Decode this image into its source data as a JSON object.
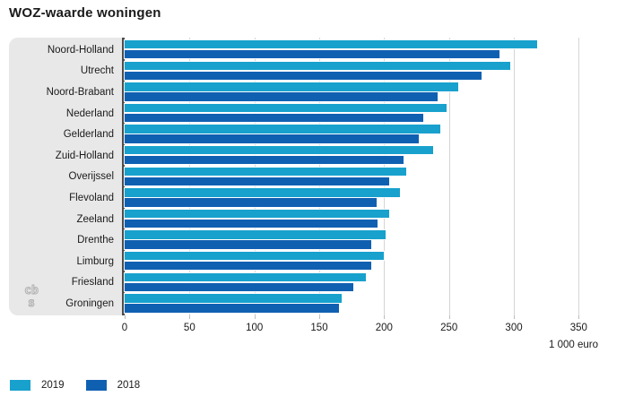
{
  "title": "WOZ-waarde woningen",
  "chart_data": {
    "type": "bar",
    "orientation": "horizontal",
    "title": "WOZ-waarde woningen",
    "categories": [
      "Noord-Holland",
      "Utrecht",
      "Noord-Brabant",
      "Nederland",
      "Gelderland",
      "Zuid-Holland",
      "Overijssel",
      "Flevoland",
      "Zeeland",
      "Drenthe",
      "Limburg",
      "Friesland",
      "Groningen"
    ],
    "series": [
      {
        "name": "2019",
        "color": "#18a1cd",
        "values": [
          318,
          297,
          257,
          248,
          243,
          238,
          217,
          212,
          204,
          201,
          200,
          186,
          167
        ]
      },
      {
        "name": "2018",
        "color": "#1060b2",
        "values": [
          289,
          275,
          241,
          230,
          227,
          215,
          204,
          194,
          195,
          190,
          190,
          176,
          165
        ]
      }
    ],
    "xlabel": "1 000 euro",
    "xticks": [
      0,
      50,
      100,
      150,
      200,
      250,
      300,
      350
    ],
    "xlim": [
      0,
      385
    ],
    "grid": true,
    "legend_position": "bottom"
  },
  "logo": {
    "line1": "cb",
    "line2": "s"
  }
}
